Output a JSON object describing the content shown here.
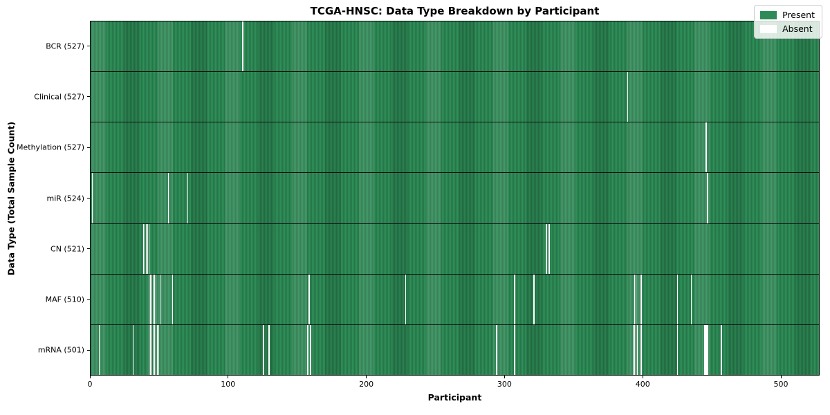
{
  "figure": {
    "title": "TCGA-HNSC: Data Type Breakdown by Participant"
  },
  "axes": {
    "xlabel": "Participant",
    "ylabel": "Data Type (Total Sample Count)"
  },
  "legend": {
    "items": [
      {
        "label": "Present",
        "color": "#2e8b57"
      },
      {
        "label": "Absent",
        "color": "#ffffff"
      }
    ]
  },
  "chart_data": {
    "type": "heatmap",
    "title": "TCGA-HNSC: Data Type Breakdown by Participant",
    "xlabel": "Participant",
    "ylabel": "Data Type (Total Sample Count)",
    "x_range": [
      0,
      528
    ],
    "x_ticks": [
      0,
      100,
      200,
      300,
      400,
      500
    ],
    "total_participants": 528,
    "grid": false,
    "legend_position": "upper right",
    "colors": {
      "present": "#2e8b57",
      "absent": "#ffffff"
    },
    "rows": [
      {
        "data_type": "BCR",
        "label": "BCR (527)",
        "present_count": 527,
        "absent_participants": [
          110
        ]
      },
      {
        "data_type": "Clinical",
        "label": "Clinical (527)",
        "present_count": 527,
        "absent_participants": [
          389
        ]
      },
      {
        "data_type": "Methylation",
        "label": "Methylation (527)",
        "present_count": 527,
        "absent_participants": [
          446
        ]
      },
      {
        "data_type": "miR",
        "label": "miR (524)",
        "present_count": 524,
        "absent_participants": [
          1,
          56,
          70,
          447
        ]
      },
      {
        "data_type": "CN",
        "label": "CN (521)",
        "present_count": 521,
        "absent_participants": [
          38,
          39,
          40,
          41,
          42,
          330,
          332
        ]
      },
      {
        "data_type": "MAF",
        "label": "MAF (510)",
        "present_count": 510,
        "absent_participants": [
          42,
          43,
          44,
          45,
          46,
          47,
          50,
          59,
          158,
          228,
          307,
          321,
          394,
          395,
          398,
          399,
          425,
          435
        ]
      },
      {
        "data_type": "mRNA",
        "label": "mRNA (501)",
        "present_count": 501,
        "absent_participants": [
          6,
          31,
          42,
          43,
          44,
          45,
          46,
          47,
          48,
          49,
          125,
          129,
          157,
          159,
          294,
          307,
          393,
          394,
          395,
          396,
          398,
          399,
          425,
          445,
          446,
          447,
          457
        ]
      }
    ]
  }
}
